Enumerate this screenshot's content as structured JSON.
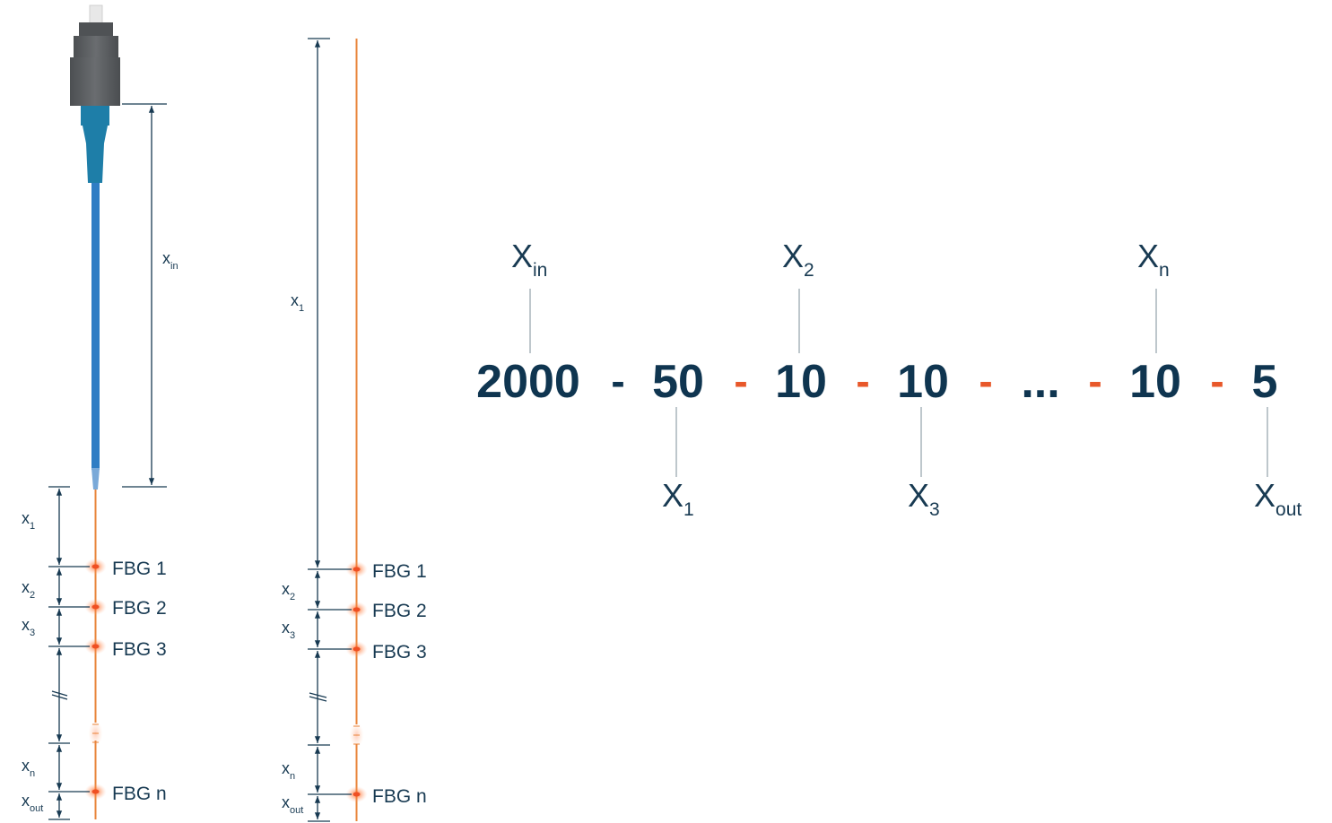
{
  "left_diagram": {
    "xin_label": {
      "base": "x",
      "sub": "in"
    },
    "segments": [
      {
        "base": "x",
        "sub": "1"
      },
      {
        "base": "x",
        "sub": "2"
      },
      {
        "base": "x",
        "sub": "3"
      },
      {
        "base": "x",
        "sub": "n"
      },
      {
        "base": "x",
        "sub": "out"
      }
    ],
    "fbg_labels": [
      "FBG 1",
      "FBG 2",
      "FBG 3",
      "FBG n"
    ]
  },
  "middle_diagram": {
    "segments": [
      {
        "base": "x",
        "sub": "1"
      },
      {
        "base": "x",
        "sub": "2"
      },
      {
        "base": "x",
        "sub": "3"
      },
      {
        "base": "x",
        "sub": "n"
      },
      {
        "base": "x",
        "sub": "out"
      }
    ],
    "fbg_labels": [
      "FBG 1",
      "FBG 2",
      "FBG 3",
      "FBG n"
    ]
  },
  "sequence": {
    "values": [
      "2000",
      "50",
      "10",
      "10",
      "...",
      "10",
      "5"
    ],
    "separators": [
      "-",
      "-",
      "-",
      "-",
      "-",
      "-"
    ],
    "top_labels": [
      {
        "base": "X",
        "sub": "in"
      },
      {
        "base": "X",
        "sub": "2"
      },
      {
        "base": "X",
        "sub": "n"
      }
    ],
    "bottom_labels": [
      {
        "base": "X",
        "sub": "1"
      },
      {
        "base": "X",
        "sub": "3"
      },
      {
        "base": "X",
        "sub": "out"
      }
    ]
  },
  "colors": {
    "connector_dark": "#5f6265",
    "boot_teal": "#1e7ea8",
    "cable_blue": "#2f7dc4",
    "fiber_orange": "#e8843a",
    "fbg_red": "#ef4f23",
    "text_navy": "#183a52",
    "separator_orange": "#e8582a"
  }
}
